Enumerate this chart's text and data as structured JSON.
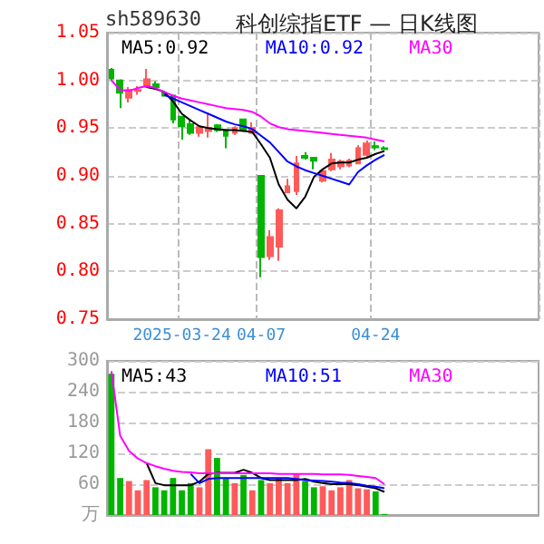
{
  "chart_data": [
    {
      "type": "candlestick",
      "title": "科创综指ETF — 日K线图",
      "annotations": [
        "sh589630"
      ],
      "categories": [
        null,
        null,
        null,
        null,
        null,
        null,
        null,
        null,
        "2025-03-24",
        null,
        null,
        null,
        null,
        null,
        null,
        null,
        null,
        "04-07",
        null,
        null,
        null,
        null,
        null,
        null,
        null,
        null,
        null,
        null,
        null,
        null,
        "04-24",
        null,
        null,
        null,
        null,
        null,
        null,
        null,
        null,
        null,
        null,
        null,
        null,
        null,
        null,
        null,
        null,
        null,
        null
      ],
      "ohlc": [
        [
          1.011,
          1.013,
          1.0,
          1.002
        ],
        [
          1.0,
          1.001,
          0.971,
          0.987
        ],
        [
          0.982,
          0.993,
          0.977,
          0.99
        ],
        [
          0.989,
          0.994,
          0.985,
          0.99
        ],
        [
          0.994,
          1.012,
          0.992,
          1.001
        ],
        [
          0.996,
          0.999,
          0.991,
          0.993
        ],
        [
          0.987,
          0.988,
          0.983,
          0.984
        ],
        [
          0.984,
          0.985,
          0.955,
          0.959
        ],
        [
          0.962,
          0.963,
          0.938,
          0.952
        ],
        [
          0.954,
          0.958,
          0.943,
          0.945
        ],
        [
          0.945,
          0.953,
          0.941,
          0.951
        ],
        [
          0.947,
          0.966,
          0.94,
          0.95
        ],
        [
          0.953,
          0.954,
          0.946,
          0.948
        ],
        [
          0.948,
          0.949,
          0.929,
          0.942
        ],
        [
          0.945,
          0.952,
          0.943,
          0.95
        ],
        [
          0.959,
          0.96,
          0.947,
          0.948
        ],
        [
          0.945,
          0.956,
          0.944,
          0.95
        ],
        [
          0.9,
          0.901,
          0.794,
          0.815
        ],
        [
          0.816,
          0.843,
          0.812,
          0.836
        ],
        [
          0.826,
          0.866,
          0.811,
          0.864
        ],
        [
          0.883,
          0.897,
          0.882,
          0.889
        ],
        [
          0.884,
          0.921,
          0.88,
          0.913
        ],
        [
          0.921,
          0.925,
          0.917,
          0.919
        ],
        [
          0.919,
          0.92,
          0.907,
          0.916
        ],
        [
          0.895,
          0.907,
          0.893,
          0.905
        ],
        [
          0.907,
          0.924,
          0.905,
          0.917
        ],
        [
          0.91,
          0.917,
          0.907,
          0.915
        ],
        [
          0.911,
          0.918,
          0.909,
          0.916
        ],
        [
          0.913,
          0.932,
          0.912,
          0.929
        ],
        [
          0.922,
          0.937,
          0.92,
          0.934
        ],
        [
          0.931,
          0.936,
          0.927,
          0.93
        ],
        [
          0.929,
          0.931,
          0.927,
          0.928
        ],
        null,
        null,
        null,
        null,
        null,
        null,
        null,
        null,
        null,
        null,
        null,
        null,
        null,
        null,
        null,
        null,
        null
      ],
      "colors": [
        "#00b400",
        "#00b400",
        "#ff5a5a",
        "#ff5a5a",
        "#ff5a5a",
        "#00b400",
        "#00b400",
        "#00b400",
        "#00b400",
        "#00b400",
        "#ff5a5a",
        "#ff5a5a",
        "#00b400",
        "#00b400",
        "#ff5a5a",
        "#00b400",
        "#ff5a5a",
        "#00b400",
        "#ff5a5a",
        "#ff5a5a",
        "#ff5a5a",
        "#ff5a5a",
        "#00b400",
        "#00b400",
        "#ff5a5a",
        "#ff5a5a",
        "#ff5a5a",
        "#ff5a5a",
        "#ff5a5a",
        "#ff5a5a",
        "#00b400",
        "#00b400",
        null,
        null,
        null,
        null,
        null,
        null,
        null,
        null,
        null,
        null,
        null,
        null,
        null,
        null,
        null,
        null,
        null
      ],
      "series": [
        {
          "type": "line",
          "name": "MA5:0.92",
          "color": "#000000",
          "values": [
            null,
            null,
            null,
            null,
            0.993,
            0.991,
            0.988,
            0.978,
            0.965,
            0.958,
            0.952,
            0.95,
            0.949,
            0.948,
            0.948,
            0.947,
            0.946,
            0.933,
            0.919,
            0.891,
            0.875,
            0.866,
            0.878,
            0.899,
            0.907,
            0.913,
            0.914,
            0.914,
            0.917,
            0.919,
            0.923,
            0.926,
            null,
            null,
            null,
            null,
            null,
            null,
            null,
            null,
            null,
            null,
            null,
            null,
            null,
            null,
            null,
            null,
            null
          ]
        },
        {
          "type": "line",
          "name": "MA10:0.92",
          "color": "#0000ff",
          "values": [
            null,
            null,
            null,
            null,
            null,
            null,
            0.985,
            0.981,
            0.977,
            0.973,
            0.969,
            0.965,
            0.961,
            0.957,
            0.954,
            0.952,
            0.949,
            0.942,
            0.935,
            0.925,
            0.915,
            0.91,
            0.906,
            0.903,
            0.9,
            0.897,
            0.894,
            0.891,
            0.904,
            0.911,
            0.917,
            0.922,
            null,
            null,
            null,
            null,
            null,
            null,
            null,
            null,
            null,
            null,
            null,
            null,
            null,
            null,
            null,
            null,
            null
          ]
        },
        {
          "type": "line",
          "name": "MA30",
          "color": "#ff00ff",
          "values": [
            1.0,
            0.99,
            0.989,
            0.992,
            0.994,
            0.992,
            0.988,
            0.984,
            0.981,
            0.979,
            0.977,
            0.975,
            0.973,
            0.971,
            0.97,
            0.969,
            0.967,
            0.962,
            0.955,
            0.951,
            0.949,
            0.948,
            0.947,
            0.946,
            0.945,
            0.944,
            0.943,
            0.942,
            0.941,
            0.94,
            0.938,
            0.936,
            null,
            null,
            null,
            null,
            null,
            null,
            null,
            null,
            null,
            null,
            null,
            null,
            null,
            null,
            null,
            null,
            null
          ]
        }
      ],
      "ylim": [
        0.75,
        1.05
      ],
      "yticks": [
        0.75,
        {
          "value": 0.8,
          "label": "0.80"
        },
        0.85,
        {
          "value": 0.9,
          "label": "0.90"
        },
        0.95,
        {
          "value": 1,
          "label": "1.00"
        },
        1.05
      ],
      "grid": true,
      "legend": "top"
    },
    {
      "type": "bar",
      "categories": [
        null,
        null,
        null,
        null,
        null,
        null,
        null,
        null,
        null,
        null,
        null,
        null,
        null,
        null,
        null,
        null,
        null,
        null,
        null,
        null,
        null,
        null,
        null,
        null,
        null,
        null,
        null,
        null,
        null,
        null,
        null,
        null,
        null,
        null,
        null,
        null,
        null,
        null,
        null,
        null,
        null,
        null,
        null,
        null,
        null,
        null,
        null,
        null,
        null
      ],
      "values": [
        275,
        72,
        66,
        48,
        68,
        54,
        48,
        72,
        48,
        62,
        54,
        128,
        111,
        72,
        62,
        78,
        48,
        68,
        62,
        72,
        62,
        80,
        66,
        54,
        56,
        48,
        54,
        68,
        52,
        50,
        46,
        2,
        null,
        null,
        null,
        null,
        null,
        null,
        null,
        null,
        null,
        null,
        null,
        null,
        null,
        null,
        null,
        null,
        null
      ],
      "colors": [
        "#00b400",
        "#00b400",
        "#ff5a5a",
        "#ff5a5a",
        "#ff5a5a",
        "#00b400",
        "#00b400",
        "#00b400",
        "#00b400",
        "#00b400",
        "#ff5a5a",
        "#ff5a5a",
        "#00b400",
        "#00b400",
        "#ff5a5a",
        "#00b400",
        "#ff5a5a",
        "#00b400",
        "#ff5a5a",
        "#ff5a5a",
        "#ff5a5a",
        "#ff5a5a",
        "#00b400",
        "#00b400",
        "#ff5a5a",
        "#ff5a5a",
        "#ff5a5a",
        "#ff5a5a",
        "#ff5a5a",
        "#ff5a5a",
        "#00b400",
        "#00b400",
        null,
        null,
        null,
        null,
        null,
        null,
        null,
        null,
        null,
        null,
        null,
        null,
        null,
        null,
        null,
        null,
        null
      ],
      "series": [
        {
          "type": "line",
          "name": "MA5:43",
          "color": "#000000",
          "values": [
            null,
            null,
            null,
            null,
            101,
            62,
            58,
            58,
            58,
            58,
            65,
            80,
            82,
            82,
            82,
            88,
            82,
            72,
            68,
            68,
            68,
            68,
            70,
            65,
            62,
            60,
            60,
            60,
            58,
            55,
            52,
            45,
            null,
            null,
            null,
            null,
            null,
            null,
            null,
            null,
            null,
            null,
            null,
            null,
            null,
            null,
            null,
            null,
            null
          ]
        },
        {
          "type": "line",
          "name": "MA10:51",
          "color": "#0000ff",
          "values": [
            null,
            null,
            null,
            null,
            null,
            null,
            null,
            null,
            null,
            80,
            62,
            70,
            72,
            72,
            72,
            72,
            72,
            72,
            72,
            72,
            72,
            70,
            68,
            67,
            66,
            65,
            63,
            62,
            60,
            57,
            55,
            52,
            null,
            null,
            null,
            null,
            null,
            null,
            null,
            null,
            null,
            null,
            null,
            null,
            null,
            null,
            null,
            null,
            null
          ]
        },
        {
          "type": "line",
          "name": "MA30",
          "color": "#ff00ff",
          "values": [
            280,
            154,
            125,
            110,
            101,
            95,
            90,
            86,
            84,
            83,
            81,
            81,
            81,
            81,
            81,
            81,
            81,
            81,
            81,
            80,
            80,
            80,
            80,
            80,
            79,
            79,
            79,
            78,
            76,
            74,
            72,
            60,
            null,
            null,
            null,
            null,
            null,
            null,
            null,
            null,
            null,
            null,
            null,
            null,
            null,
            null,
            null,
            null,
            null
          ]
        }
      ],
      "ylim": [
        0,
        300
      ],
      "yticks": [
        {
          "value": 0,
          "label": "万"
        },
        60,
        120,
        180,
        240,
        300
      ],
      "grid": "y",
      "legend": "top",
      "tick_labels": "y"
    }
  ]
}
